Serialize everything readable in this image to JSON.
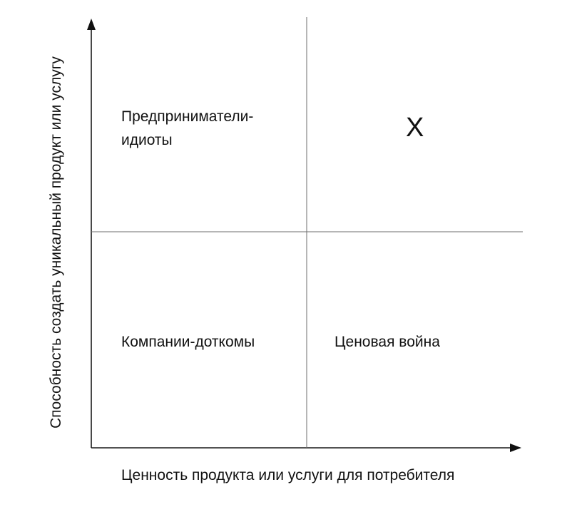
{
  "diagram": {
    "y_axis_label": "Способность создать уникальный продукт или услугу",
    "x_axis_label": "Ценность продукта или услуги для потребителя",
    "quadrants": {
      "top_left": "Предприниматели-\nидиоты",
      "top_right": "X",
      "bottom_left": "Компании-доткомы",
      "bottom_right": "Ценовая война"
    }
  }
}
